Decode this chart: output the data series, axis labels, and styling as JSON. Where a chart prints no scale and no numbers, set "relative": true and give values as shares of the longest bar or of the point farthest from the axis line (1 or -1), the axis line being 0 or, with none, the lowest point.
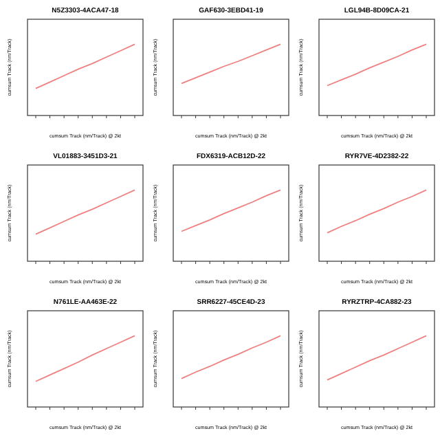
{
  "chart_data": [
    {
      "type": "line",
      "title": "N5Z3303-4ACA47-18",
      "xlabel": "cumsum Track (nm/Track) @ 2kt",
      "ylabel": "cumsum Track (nm/Track)",
      "relative": true,
      "categories": [
        null,
        null,
        null,
        null,
        null,
        null,
        null,
        null
      ],
      "series": [
        {
          "color": "#f08080",
          "values": [
            0.38,
            0.47,
            0.56,
            0.65,
            0.73,
            0.82,
            0.91,
            1
          ]
        }
      ]
    },
    {
      "type": "line",
      "title": "GAF630-3EBD41-19",
      "xlabel": "cumsum Track (nm/Track) @ 2kt",
      "ylabel": "cumsum Track (nm/Track)",
      "relative": true,
      "categories": [
        null,
        null,
        null,
        null,
        null,
        null,
        null,
        null
      ],
      "series": [
        {
          "color": "#f08080",
          "values": [
            0.45,
            0.53,
            0.61,
            0.69,
            0.76,
            0.84,
            0.92,
            1
          ]
        }
      ]
    },
    {
      "type": "line",
      "title": "LGL94B-8D09CA-21",
      "xlabel": "cumsum Track (nm/Track) @ 2kt",
      "ylabel": "cumsum Track (nm/Track)",
      "relative": true,
      "categories": [
        null,
        null,
        null,
        null,
        null,
        null,
        null,
        null
      ],
      "series": [
        {
          "color": "#f08080",
          "values": [
            0.42,
            0.5,
            0.58,
            0.67,
            0.75,
            0.83,
            0.92,
            1
          ]
        }
      ]
    },
    {
      "type": "line",
      "title": "VL01883-3451D3-21",
      "xlabel": "cumsum Track (nm/Track) @ 2kt",
      "ylabel": "cumsum Track (nm/Track)",
      "relative": true,
      "categories": [
        null,
        null,
        null,
        null,
        null,
        null,
        null,
        null
      ],
      "series": [
        {
          "color": "#f08080",
          "values": [
            0.38,
            0.47,
            0.56,
            0.65,
            0.73,
            0.82,
            0.91,
            1
          ]
        }
      ]
    },
    {
      "type": "line",
      "title": "FDX6319-ACB12D-22",
      "xlabel": "cumsum Track (nm/Track) @ 2kt",
      "ylabel": "cumsum Track (nm/Track)",
      "relative": true,
      "categories": [
        null,
        null,
        null,
        null,
        null,
        null,
        null,
        null
      ],
      "series": [
        {
          "color": "#f08080",
          "values": [
            0.42,
            0.5,
            0.58,
            0.67,
            0.75,
            0.83,
            0.92,
            1
          ]
        }
      ]
    },
    {
      "type": "line",
      "title": "RYR7VE-4D2382-22",
      "xlabel": "cumsum Track (nm/Track) @ 2kt",
      "ylabel": "cumsum Track (nm/Track)",
      "relative": true,
      "categories": [
        null,
        null,
        null,
        null,
        null,
        null,
        null,
        null
      ],
      "series": [
        {
          "color": "#f08080",
          "values": [
            0.4,
            0.49,
            0.57,
            0.66,
            0.74,
            0.83,
            0.91,
            1
          ]
        }
      ]
    },
    {
      "type": "line",
      "title": "N761LE-AA463E-22",
      "xlabel": "cumsum Track (nm/Track) @ 2kt",
      "ylabel": "cumsum Track (nm/Track)",
      "relative": true,
      "categories": [
        null,
        null,
        null,
        null,
        null,
        null,
        null,
        null
      ],
      "series": [
        {
          "color": "#f08080",
          "values": [
            0.36,
            0.45,
            0.54,
            0.63,
            0.73,
            0.82,
            0.91,
            1
          ]
        }
      ]
    },
    {
      "type": "line",
      "title": "SRR6227-45CE4D-23",
      "xlabel": "cumsum Track (nm/Track) @ 2kt",
      "ylabel": "cumsum Track (nm/Track)",
      "relative": true,
      "categories": [
        null,
        null,
        null,
        null,
        null,
        null,
        null,
        null
      ],
      "series": [
        {
          "color": "#f08080",
          "values": [
            0.4,
            0.49,
            0.57,
            0.66,
            0.74,
            0.83,
            0.91,
            1
          ]
        }
      ]
    },
    {
      "type": "line",
      "title": "RYRZTRP-4CA882-23",
      "xlabel": "cumsum Track (nm/Track) @ 2kt",
      "ylabel": "cumsum Track (nm/Track)",
      "relative": true,
      "categories": [
        null,
        null,
        null,
        null,
        null,
        null,
        null,
        null
      ],
      "series": [
        {
          "color": "#f08080",
          "values": [
            0.38,
            0.47,
            0.56,
            0.65,
            0.73,
            0.82,
            0.91,
            1
          ]
        }
      ]
    }
  ]
}
